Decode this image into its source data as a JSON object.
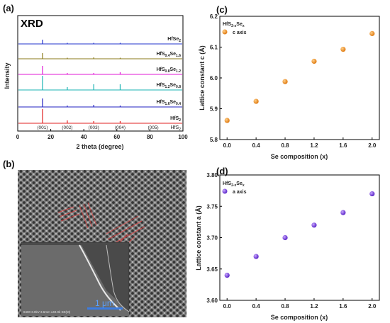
{
  "chart_data": [
    {
      "panel": "(a)",
      "type": "line",
      "title": "XRD",
      "xlabel": "2 theta (degree)",
      "ylabel": "Intensity",
      "xlim": [
        0,
        100
      ],
      "xticks": [
        "0",
        "20",
        "40",
        "60",
        "80",
        "100"
      ],
      "series": [
        {
          "name": "HfSe2",
          "label": {
            "base": "HfSe",
            "sub": "2"
          },
          "color": "#2233cc"
        },
        {
          "name": "HfS0.4Se1.6",
          "label": {
            "base": "HfS",
            "sub1": "0.4",
            "mid": "Se",
            "sub2": "1.6"
          },
          "color": "#8a7a1a"
        },
        {
          "name": "HfS0.8Se1.2",
          "label": {
            "base": "HfS",
            "sub1": "0.8",
            "mid": "Se",
            "sub2": "1.2"
          },
          "color": "#e01ad6"
        },
        {
          "name": "HfS1.2Se0.8",
          "label": {
            "base": "HfS",
            "sub1": "1.2",
            "mid": "Se",
            "sub2": "0.8"
          },
          "color": "#1ab3b3"
        },
        {
          "name": "HfS1.6Se0.4",
          "label": {
            "base": "HfS",
            "sub1": "1.6",
            "mid": "Se",
            "sub2": "0.4"
          },
          "color": "#2020c0"
        },
        {
          "name": "HfS2",
          "label": {
            "base": "HfS",
            "sub": "2"
          },
          "color": "#e02020"
        }
      ],
      "peak_positions": [
        15,
        30,
        46,
        62
      ],
      "annotations": [
        "(001)",
        "(002)",
        "(003)",
        "(004)",
        "(005)"
      ]
    },
    {
      "panel": "(c)",
      "type": "scatter",
      "title": {
        "base": "HfS",
        "sub1": "2-x",
        "mid": "Se",
        "sub2": "x"
      },
      "legend": "c axis",
      "legend_position": "top-left",
      "xlabel": "Se composition (x)",
      "ylabel": "Lattice constant c (Å)",
      "xlim": [
        -0.1,
        2.1
      ],
      "ylim": [
        5.8,
        6.2
      ],
      "xticks": [
        "0.0",
        "0.4",
        "0.8",
        "1.2",
        "1.6",
        "2.0"
      ],
      "yticks": [
        "5.8",
        "5.9",
        "6.0",
        "6.1",
        "6.2"
      ],
      "x": [
        0.0,
        0.4,
        0.8,
        1.2,
        1.6,
        2.0
      ],
      "y": [
        5.862,
        5.924,
        5.988,
        6.054,
        6.093,
        6.144
      ],
      "color": "#f0921e"
    },
    {
      "panel": "(d)",
      "type": "scatter",
      "title": {
        "base": "HfS",
        "sub1": "2-x",
        "mid": "Se",
        "sub2": "x"
      },
      "legend": "a axis",
      "legend_position": "top-left",
      "xlabel": "Se composition (x)",
      "ylabel": "Lattice constant a (Å)",
      "xlim": [
        -0.1,
        2.1
      ],
      "ylim": [
        3.6,
        3.8
      ],
      "xticks": [
        "0.0",
        "0.4",
        "0.8",
        "1.2",
        "1.6",
        "2.0"
      ],
      "yticks": [
        "3.60",
        "3.65",
        "3.70",
        "3.75",
        "3.80"
      ],
      "x": [
        0.0,
        0.4,
        0.8,
        1.2,
        1.6,
        2.0
      ],
      "y": [
        3.64,
        3.67,
        3.7,
        3.72,
        3.74,
        3.77
      ],
      "color": "#7b3fe0"
    }
  ],
  "image_panel": {
    "panel": "(b)",
    "scale_bar": "1 μm",
    "sem_caption": "8400 3.0kV 3.6mm x40.0k SE(M)"
  }
}
